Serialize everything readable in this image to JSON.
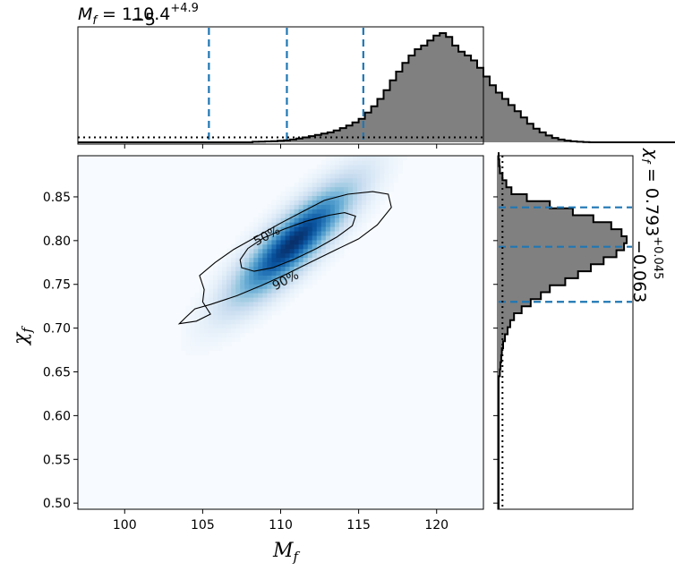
{
  "chart_data": {
    "type": "heatmap",
    "title_top": {
      "symbol": "M",
      "sub": "f",
      "eq": " = 110.4",
      "sup": "+4.9",
      "low": "−5"
    },
    "title_right": {
      "symbol": "χ",
      "sub": "f",
      "eq": " = 0.793",
      "sup": "+0.045",
      "low": "−0.063"
    },
    "xlabel": {
      "symbol": "M",
      "sub": "f"
    },
    "ylabel": {
      "symbol": "χ",
      "sub": "f"
    },
    "xlim": [
      97,
      123
    ],
    "ylim": [
      0.493,
      0.897
    ],
    "x_ticks": [
      "100",
      "105",
      "110",
      "115",
      "120"
    ],
    "y_ticks": [
      "0.50",
      "0.55",
      "0.60",
      "0.65",
      "0.70",
      "0.75",
      "0.80",
      "0.85"
    ],
    "heatmap": {
      "colormap": "Blues",
      "center": [
        110.8,
        0.798
      ],
      "sigma_x": 2.4,
      "sigma_y": 0.042,
      "correlation": 0.85
    },
    "contours": [
      {
        "label": "50%",
        "label_x": 109.1,
        "label_y": 0.806,
        "points": [
          [
            107.5,
            0.769
          ],
          [
            107.4,
            0.778
          ],
          [
            107.9,
            0.791
          ],
          [
            108.9,
            0.803
          ],
          [
            110.2,
            0.813
          ],
          [
            111.6,
            0.822
          ],
          [
            113.1,
            0.829
          ],
          [
            114.1,
            0.832
          ],
          [
            114.8,
            0.828
          ],
          [
            114.6,
            0.817
          ],
          [
            113.6,
            0.804
          ],
          [
            112.3,
            0.791
          ],
          [
            110.9,
            0.779
          ],
          [
            109.5,
            0.769
          ],
          [
            108.3,
            0.765
          ],
          [
            107.5,
            0.769
          ]
        ]
      },
      {
        "label": "90%",
        "label_x": 110.3,
        "label_y": 0.755,
        "points": [
          [
            105.1,
            0.744
          ],
          [
            104.8,
            0.76
          ],
          [
            105.8,
            0.775
          ],
          [
            107.0,
            0.79
          ],
          [
            108.5,
            0.805
          ],
          [
            110.0,
            0.82
          ],
          [
            111.5,
            0.834
          ],
          [
            112.8,
            0.846
          ],
          [
            114.3,
            0.853
          ],
          [
            115.9,
            0.856
          ],
          [
            116.9,
            0.853
          ],
          [
            117.1,
            0.838
          ],
          [
            116.2,
            0.818
          ],
          [
            115.0,
            0.802
          ],
          [
            113.6,
            0.79
          ],
          [
            112.0,
            0.776
          ],
          [
            110.4,
            0.762
          ],
          [
            108.8,
            0.749
          ],
          [
            107.2,
            0.737
          ],
          [
            105.5,
            0.727
          ],
          [
            104.5,
            0.722
          ],
          [
            103.9,
            0.712
          ],
          [
            103.5,
            0.705
          ],
          [
            104.6,
            0.708
          ],
          [
            105.5,
            0.716
          ],
          [
            105.0,
            0.73
          ],
          [
            105.1,
            0.744
          ]
        ]
      }
    ],
    "top_hist": {
      "edges_start": 97.0,
      "bin_width": 0.4,
      "densities": [
        0,
        0,
        0,
        0,
        0,
        0,
        0,
        0,
        0,
        0,
        0,
        0,
        0,
        0,
        0,
        0,
        0,
        0,
        0,
        0,
        0,
        0,
        0,
        0,
        0,
        0,
        0,
        0,
        0.004,
        0.005,
        0.007,
        0.009,
        0.012,
        0.016,
        0.022,
        0.03,
        0.04,
        0.05,
        0.06,
        0.07,
        0.08,
        0.095,
        0.115,
        0.135,
        0.16,
        0.19,
        0.24,
        0.29,
        0.35,
        0.42,
        0.5,
        0.57,
        0.64,
        0.7,
        0.75,
        0.78,
        0.82,
        0.86,
        0.88,
        0.85,
        0.78,
        0.73,
        0.7,
        0.66,
        0.6,
        0.53,
        0.46,
        0.4,
        0.35,
        0.3,
        0.25,
        0.2,
        0.15,
        0.11,
        0.08,
        0.055,
        0.035,
        0.022,
        0.014,
        0.008,
        0.004,
        0.002,
        0,
        0,
        0,
        0,
        0,
        0,
        0,
        0,
        0,
        0,
        0,
        0,
        0,
        0
      ],
      "max_density": 0.88,
      "quantile_lines": [
        105.4,
        110.4,
        115.3
      ],
      "prior_level": 0.04
    },
    "right_hist": {
      "edges_start": 0.493,
      "bin_width": 0.008,
      "densities": [
        0,
        0,
        0,
        0,
        0,
        0,
        0,
        0,
        0,
        0,
        0,
        0,
        0,
        0,
        0,
        0,
        0,
        0,
        0,
        0.01,
        0.015,
        0.02,
        0.025,
        0.035,
        0.05,
        0.07,
        0.09,
        0.12,
        0.18,
        0.25,
        0.33,
        0.4,
        0.52,
        0.62,
        0.72,
        0.82,
        0.92,
        0.98,
        1.0,
        0.96,
        0.88,
        0.74,
        0.58,
        0.4,
        0.22,
        0.1,
        0.06,
        0.03,
        0.01,
        0.005,
        0
      ],
      "max_density": 1.0,
      "quantile_lines": [
        0.73,
        0.793,
        0.838
      ],
      "prior_level": 0.03
    }
  }
}
